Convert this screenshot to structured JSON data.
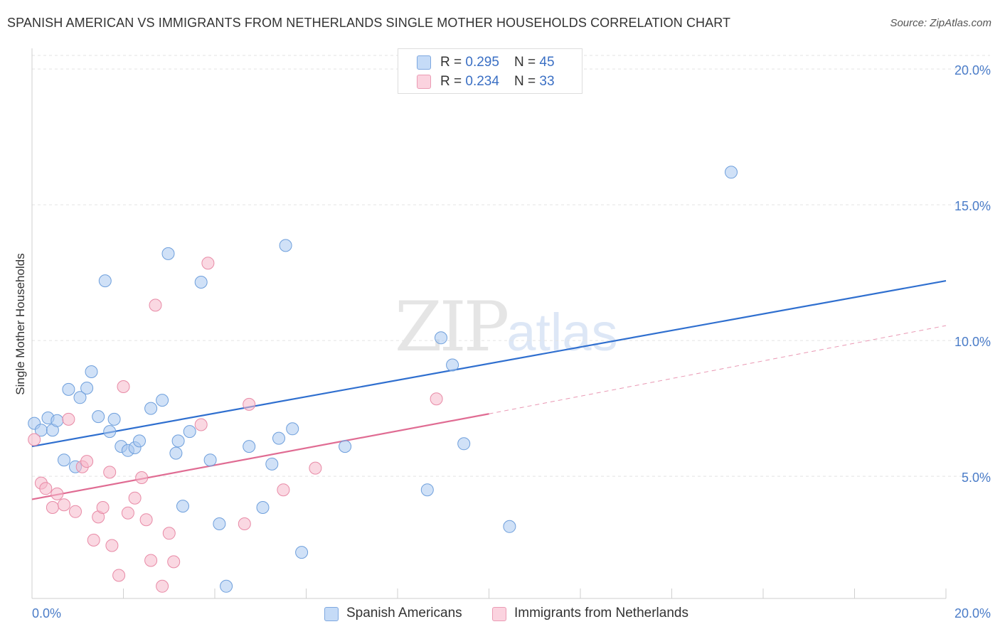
{
  "header": {
    "title": "SPANISH AMERICAN VS IMMIGRANTS FROM NETHERLANDS SINGLE MOTHER HOUSEHOLDS CORRELATION CHART",
    "source": "Source: ZipAtlas.com"
  },
  "watermark": {
    "zip": "ZIP",
    "atlas": "atlas"
  },
  "legend": {
    "rows": [
      {
        "r_label": "R = ",
        "r_value": "0.295",
        "n_label": "N = ",
        "n_value": "45",
        "color": "#a9c8f0"
      },
      {
        "r_label": "R = ",
        "r_value": "0.234",
        "n_label": "N = ",
        "n_value": "33",
        "color": "#f5b8ca"
      }
    ]
  },
  "bottom_legend": {
    "series1": "Spanish Americans",
    "series2": "Immigrants from Netherlands"
  },
  "chart_data": {
    "type": "scatter",
    "title": "SPANISH AMERICAN VS IMMIGRANTS FROM NETHERLANDS SINGLE MOTHER HOUSEHOLDS CORRELATION CHART",
    "ylabel": "Single Mother Households",
    "xlabel": "",
    "xlim": [
      0,
      20
    ],
    "ylim": [
      0.5,
      20.5
    ],
    "x_ticks": [
      "0.0%",
      "20.0%"
    ],
    "y_ticks": [
      {
        "value": 5,
        "label": "5.0%"
      },
      {
        "value": 10,
        "label": "10.0%"
      },
      {
        "value": 15,
        "label": "15.0%"
      },
      {
        "value": 20,
        "label": "20.0%"
      }
    ],
    "grid": true,
    "legend_position": "top-center",
    "series": [
      {
        "name": "Spanish Americans",
        "color": "#a9c8f0",
        "edge": "#6e9fdc",
        "trend": {
          "x": [
            0,
            20
          ],
          "y": [
            6.1,
            12.2
          ],
          "color": "#2f6fcf"
        },
        "points": [
          [
            0.05,
            6.95
          ],
          [
            0.2,
            6.7
          ],
          [
            0.35,
            7.15
          ],
          [
            0.45,
            6.7
          ],
          [
            0.55,
            7.05
          ],
          [
            0.7,
            5.6
          ],
          [
            0.8,
            8.2
          ],
          [
            0.95,
            5.35
          ],
          [
            1.05,
            7.9
          ],
          [
            1.2,
            8.25
          ],
          [
            1.3,
            8.85
          ],
          [
            1.45,
            7.2
          ],
          [
            1.6,
            12.2
          ],
          [
            1.7,
            6.65
          ],
          [
            1.8,
            7.1
          ],
          [
            1.95,
            6.1
          ],
          [
            2.1,
            5.95
          ],
          [
            2.25,
            6.05
          ],
          [
            2.35,
            6.3
          ],
          [
            2.6,
            7.5
          ],
          [
            2.85,
            7.8
          ],
          [
            2.98,
            13.2
          ],
          [
            3.15,
            5.85
          ],
          [
            3.2,
            6.3
          ],
          [
            3.3,
            3.9
          ],
          [
            3.45,
            6.65
          ],
          [
            3.7,
            12.15
          ],
          [
            3.9,
            5.6
          ],
          [
            4.1,
            3.25
          ],
          [
            4.25,
            0.95
          ],
          [
            4.75,
            6.1
          ],
          [
            5.05,
            3.85
          ],
          [
            5.25,
            5.45
          ],
          [
            5.4,
            6.4
          ],
          [
            5.55,
            13.5
          ],
          [
            5.7,
            6.75
          ],
          [
            5.9,
            2.2
          ],
          [
            6.85,
            6.1
          ],
          [
            8.65,
            4.5
          ],
          [
            8.95,
            10.1
          ],
          [
            9.2,
            9.1
          ],
          [
            9.45,
            6.2
          ],
          [
            10.45,
            3.15
          ],
          [
            11.15,
            19.5
          ],
          [
            15.3,
            16.2
          ]
        ]
      },
      {
        "name": "Immigrants from Netherlands",
        "color": "#f5b8ca",
        "edge": "#e88aa6",
        "trend": {
          "x": [
            0,
            10
          ],
          "y": [
            4.15,
            7.3
          ],
          "color": "#e06c93"
        },
        "trend_extension": {
          "x": [
            10,
            20
          ],
          "y": [
            7.3,
            10.55
          ]
        },
        "points": [
          [
            0.05,
            6.35
          ],
          [
            0.2,
            4.75
          ],
          [
            0.3,
            4.55
          ],
          [
            0.45,
            3.85
          ],
          [
            0.55,
            4.35
          ],
          [
            0.7,
            3.95
          ],
          [
            0.8,
            7.1
          ],
          [
            0.95,
            3.7
          ],
          [
            1.1,
            5.35
          ],
          [
            1.2,
            5.55
          ],
          [
            1.35,
            2.65
          ],
          [
            1.45,
            3.5
          ],
          [
            1.55,
            3.85
          ],
          [
            1.7,
            5.15
          ],
          [
            1.75,
            2.45
          ],
          [
            1.9,
            1.35
          ],
          [
            2.0,
            8.3
          ],
          [
            2.1,
            3.65
          ],
          [
            2.25,
            4.2
          ],
          [
            2.4,
            4.95
          ],
          [
            2.5,
            3.4
          ],
          [
            2.6,
            1.9
          ],
          [
            2.7,
            11.3
          ],
          [
            2.85,
            0.95
          ],
          [
            3.0,
            2.9
          ],
          [
            3.1,
            1.85
          ],
          [
            3.7,
            6.9
          ],
          [
            3.85,
            12.85
          ],
          [
            4.65,
            3.25
          ],
          [
            4.75,
            7.65
          ],
          [
            5.5,
            4.5
          ],
          [
            6.2,
            5.3
          ],
          [
            8.85,
            7.85
          ]
        ]
      }
    ]
  }
}
